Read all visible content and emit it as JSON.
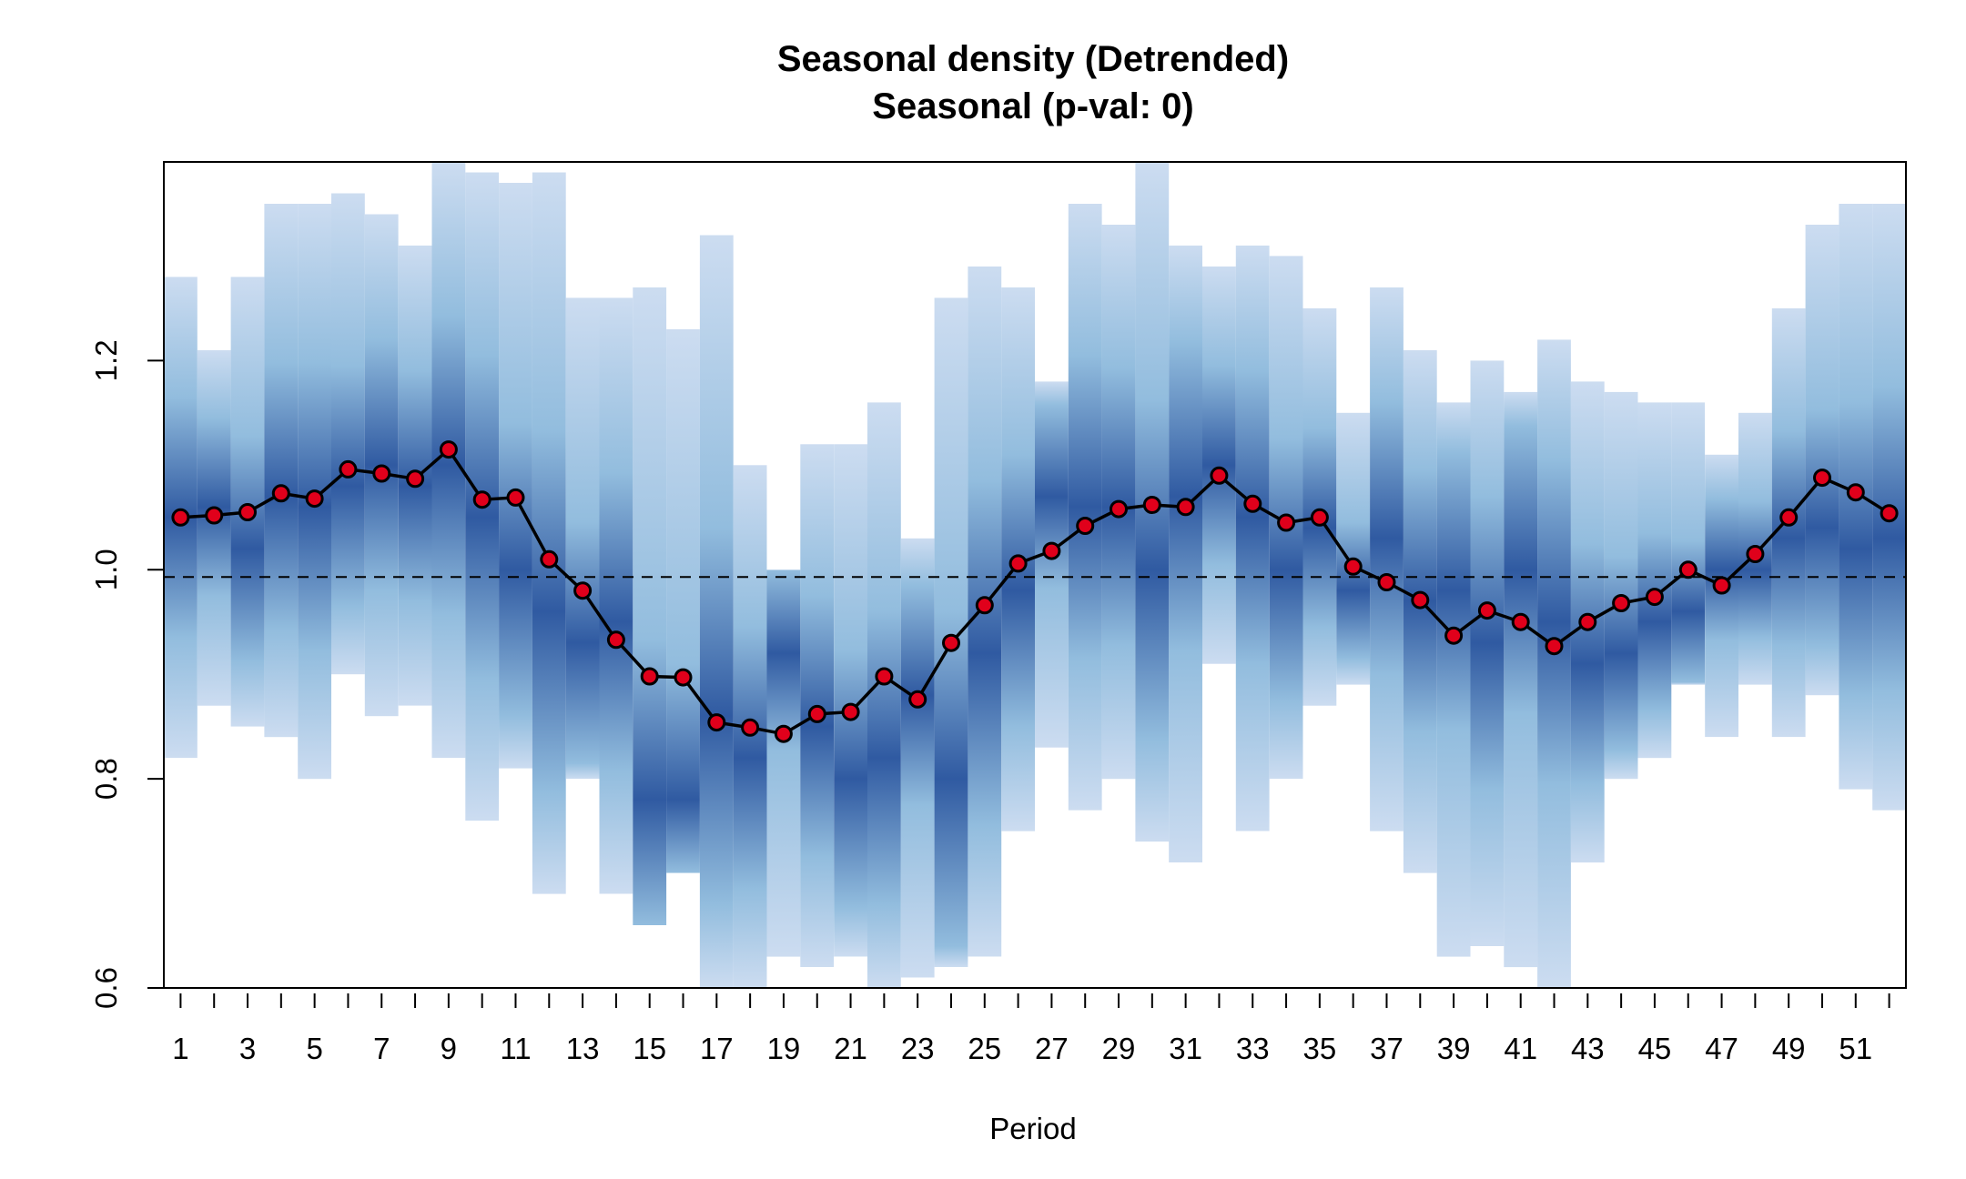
{
  "chart_data": {
    "type": "line",
    "title": "Seasonal density (Detrended)",
    "subtitle": "Seasonal (p-val: 0)",
    "xlabel": "Period",
    "ylabel": "",
    "xlim": [
      0.5,
      52.5
    ],
    "ylim": [
      0.6,
      1.39
    ],
    "y_ticks": [
      "0.6",
      "0.8",
      "1.0",
      "1.2"
    ],
    "x_tick_labels": [
      "1",
      "3",
      "5",
      "7",
      "9",
      "11",
      "13",
      "15",
      "17",
      "19",
      "21",
      "23",
      "25",
      "27",
      "29",
      "31",
      "33",
      "35",
      "37",
      "39",
      "41",
      "43",
      "45",
      "47",
      "49",
      "51"
    ],
    "reference_line": 0.993,
    "colors": {
      "line": "#000000",
      "point_fill": "#e0001b",
      "density_light": "#c3d6ee",
      "density_mid": "#7fb1d8",
      "density_dark": "#0b3d91"
    },
    "series": [
      {
        "x": [
          1,
          2,
          3,
          4,
          5,
          6,
          7,
          8,
          9,
          10,
          11,
          12,
          13,
          14,
          15,
          16,
          17,
          18,
          19,
          20,
          21,
          22,
          23,
          24,
          25,
          26,
          27,
          28,
          29,
          30,
          31,
          32,
          33,
          34,
          35,
          36,
          37,
          38,
          39,
          40,
          41,
          42,
          43,
          44,
          45,
          46,
          47,
          48,
          49,
          50,
          51,
          52
        ],
        "values": [
          1.05,
          1.052,
          1.055,
          1.073,
          1.068,
          1.096,
          1.092,
          1.087,
          1.115,
          1.067,
          1.069,
          1.01,
          0.98,
          0.933,
          0.898,
          0.897,
          0.854,
          0.849,
          0.843,
          0.862,
          0.864,
          0.898,
          0.876,
          0.93,
          0.966,
          1.006,
          1.018,
          1.042,
          1.058,
          1.062,
          1.06,
          1.09,
          1.063,
          1.045,
          1.05,
          1.003,
          0.988,
          0.971,
          0.937,
          0.961,
          0.95,
          0.927,
          0.95,
          0.968,
          0.974,
          1.0,
          0.985,
          1.015,
          1.05,
          1.088,
          1.074,
          1.054
        ]
      }
    ],
    "density": [
      [
        0.82,
        1.28,
        1.05
      ],
      [
        0.87,
        1.21,
        1.06
      ],
      [
        0.85,
        1.28,
        1.02
      ],
      [
        0.84,
        1.35,
        1.07
      ],
      [
        0.8,
        1.35,
        1.06
      ],
      [
        0.9,
        1.36,
        1.08
      ],
      [
        0.86,
        1.34,
        1.1
      ],
      [
        0.87,
        1.31,
        1.08
      ],
      [
        0.82,
        1.39,
        1.1
      ],
      [
        0.76,
        1.38,
        1.05
      ],
      [
        0.81,
        1.37,
        1.0
      ],
      [
        0.69,
        1.38,
        0.96
      ],
      [
        0.8,
        1.26,
        0.93
      ],
      [
        0.69,
        1.26,
        0.95
      ],
      [
        0.66,
        1.27,
        0.78
      ],
      [
        0.71,
        1.23,
        0.78
      ],
      [
        0.6,
        1.32,
        0.86
      ],
      [
        0.6,
        1.1,
        0.82
      ],
      [
        0.63,
        1.0,
        0.92
      ],
      [
        0.62,
        1.12,
        0.85
      ],
      [
        0.63,
        1.12,
        0.8
      ],
      [
        0.6,
        1.16,
        0.82
      ],
      [
        0.61,
        1.03,
        0.88
      ],
      [
        0.62,
        1.26,
        0.8
      ],
      [
        0.63,
        1.29,
        0.92
      ],
      [
        0.75,
        1.27,
        0.98
      ],
      [
        0.83,
        1.18,
        1.07
      ],
      [
        0.77,
        1.35,
        1.06
      ],
      [
        0.8,
        1.33,
        1.06
      ],
      [
        0.74,
        1.39,
        1.0
      ],
      [
        0.72,
        1.31,
        1.07
      ],
      [
        0.91,
        1.29,
        1.1
      ],
      [
        0.75,
        1.31,
        1.05
      ],
      [
        0.8,
        1.3,
        1.0
      ],
      [
        0.87,
        1.25,
        1.04
      ],
      [
        0.89,
        1.15,
        0.98
      ],
      [
        0.75,
        1.27,
        1.03
      ],
      [
        0.71,
        1.21,
        0.97
      ],
      [
        0.63,
        1.16,
        0.98
      ],
      [
        0.64,
        1.2,
        0.93
      ],
      [
        0.62,
        1.17,
        1.0
      ],
      [
        0.6,
        1.22,
        0.95
      ],
      [
        0.72,
        1.18,
        0.91
      ],
      [
        0.8,
        1.17,
        0.92
      ],
      [
        0.82,
        1.16,
        0.95
      ],
      [
        0.89,
        1.16,
        0.96
      ],
      [
        0.84,
        1.11,
        1.0
      ],
      [
        0.89,
        1.15,
        1.0
      ],
      [
        0.84,
        1.25,
        1.03
      ],
      [
        0.88,
        1.33,
        1.04
      ],
      [
        0.79,
        1.35,
        1.02
      ],
      [
        0.77,
        1.35,
        1.03
      ]
    ]
  }
}
